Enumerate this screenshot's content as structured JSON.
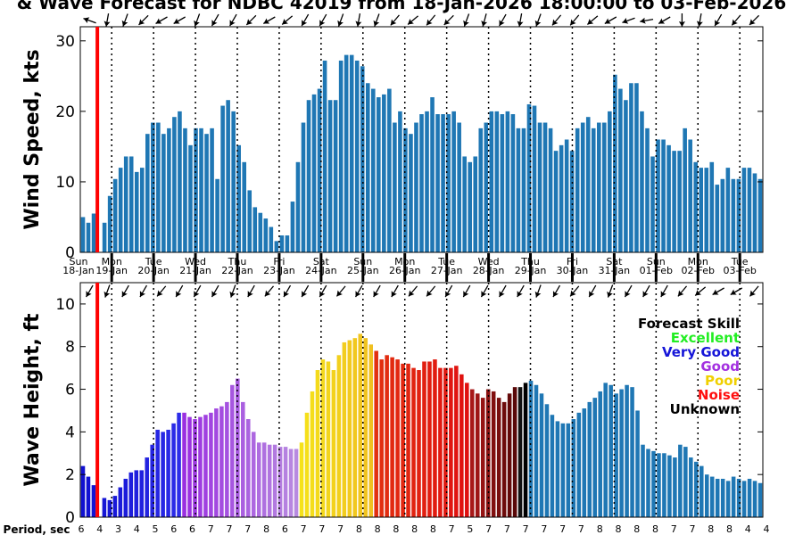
{
  "chart_data": {
    "type": "bar",
    "title": "& Wave Forecast for NDBC 42019 from 18-Jan-2026 18:00:00 to 03-Feb-2026",
    "days": [
      {
        "dow": "Sun",
        "date": "18-Jan"
      },
      {
        "dow": "Mon",
        "date": "19-Jan"
      },
      {
        "dow": "Tue",
        "date": "20-Jan"
      },
      {
        "dow": "Wed",
        "date": "21-Jan"
      },
      {
        "dow": "Thu",
        "date": "22-Jan"
      },
      {
        "dow": "Fri",
        "date": "23-Jan"
      },
      {
        "dow": "Sat",
        "date": "24-Jan"
      },
      {
        "dow": "Sun",
        "date": "25-Jan"
      },
      {
        "dow": "Mon",
        "date": "26-Jan"
      },
      {
        "dow": "Tue",
        "date": "27-Jan"
      },
      {
        "dow": "Wed",
        "date": "28-Jan"
      },
      {
        "dow": "Thu",
        "date": "29-Jan"
      },
      {
        "dow": "Fri",
        "date": "30-Jan"
      },
      {
        "dow": "Sat",
        "date": "31-Jan"
      },
      {
        "dow": "Sun",
        "date": "01-Feb"
      },
      {
        "dow": "Mon",
        "date": "02-Feb"
      },
      {
        "dow": "Tue",
        "date": "03-Feb"
      }
    ],
    "wind": {
      "ylabel": "Wind Speed, kts",
      "ylim": [
        0,
        32
      ],
      "yticks": [
        0,
        10,
        20,
        30
      ],
      "color": "#1f77b4",
      "values": [
        5.0,
        4.2,
        5.5,
        0,
        4.2,
        8.0,
        10.4,
        12.0,
        13.6,
        13.6,
        11.4,
        12.0,
        16.8,
        18.4,
        18.4,
        16.8,
        17.6,
        19.2,
        20.0,
        17.6,
        15.2,
        17.6,
        17.6,
        16.8,
        17.6,
        10.4,
        20.8,
        21.6,
        20.0,
        15.2,
        12.8,
        8.8,
        6.4,
        5.6,
        4.8,
        3.6,
        1.6,
        2.4,
        2.4,
        7.2,
        12.8,
        18.4,
        21.6,
        22.4,
        23.2,
        27.2,
        21.6,
        21.6,
        27.2,
        28.0,
        28.0,
        27.2,
        26.4,
        24.0,
        23.2,
        22.0,
        22.4,
        23.2,
        18.4,
        20.0,
        17.6,
        16.8,
        18.4,
        19.6,
        20.0,
        22.0,
        19.6,
        19.6,
        19.6,
        20.0,
        18.4,
        13.6,
        12.8,
        13.6,
        17.6,
        18.4,
        20.0,
        20.0,
        19.6,
        20.0,
        19.6,
        17.6,
        17.6,
        21.0,
        20.8,
        18.4,
        18.4,
        17.6,
        14.4,
        15.2,
        16.0,
        14.4,
        17.6,
        18.4,
        19.2,
        17.6,
        18.4,
        18.4,
        20.0,
        25.2,
        23.2,
        21.6,
        24.0,
        24.0,
        20.0,
        17.6,
        13.6,
        16.0,
        16.0,
        15.2,
        14.4,
        14.4,
        17.6,
        16.0,
        12.8,
        12.0,
        12.0,
        12.8,
        9.6,
        10.4,
        12.0,
        10.4,
        10.4,
        12.0,
        12.0,
        11.2,
        10.4
      ]
    },
    "wave": {
      "ylabel": "Wave Height, ft",
      "ylim": [
        0,
        11
      ],
      "yticks": [
        0,
        2,
        4,
        6,
        8,
        10
      ],
      "values": [
        2.4,
        1.9,
        1.5,
        0,
        0.9,
        0.8,
        1.0,
        1.4,
        1.8,
        2.1,
        2.2,
        2.2,
        2.8,
        3.4,
        4.1,
        4.0,
        4.1,
        4.4,
        4.9,
        4.9,
        4.7,
        4.6,
        4.7,
        4.8,
        4.9,
        5.1,
        5.2,
        5.4,
        6.2,
        6.5,
        5.4,
        4.6,
        4.0,
        3.5,
        3.5,
        3.4,
        3.4,
        3.3,
        3.3,
        3.2,
        3.2,
        3.5,
        4.9,
        5.9,
        6.9,
        7.4,
        7.3,
        6.9,
        7.6,
        8.2,
        8.3,
        8.4,
        8.6,
        8.4,
        8.1,
        7.8,
        7.4,
        7.6,
        7.5,
        7.4,
        7.2,
        7.2,
        7.0,
        6.9,
        7.3,
        7.3,
        7.4,
        7.0,
        7.0,
        7.0,
        7.1,
        6.7,
        6.3,
        6.0,
        5.8,
        5.6,
        6.0,
        5.9,
        5.6,
        5.4,
        5.8,
        6.1,
        6.1,
        6.3,
        6.4,
        6.2,
        5.8,
        5.3,
        4.8,
        4.5,
        4.4,
        4.4,
        4.6,
        4.9,
        5.1,
        5.4,
        5.6,
        5.9,
        6.3,
        6.2,
        5.8,
        6.0,
        6.2,
        6.1,
        5.0,
        3.4,
        3.2,
        3.1,
        3.0,
        3.0,
        2.9,
        2.8,
        3.4,
        3.3,
        2.8,
        2.6,
        2.4,
        2.0,
        1.9,
        1.8,
        1.8,
        1.7,
        1.9,
        1.8,
        1.7,
        1.8,
        1.7,
        1.6
      ],
      "color_index": [
        0,
        0,
        0,
        0,
        0,
        0,
        0,
        0,
        0,
        0,
        0,
        0,
        0,
        0,
        0,
        0,
        0,
        0,
        0,
        1,
        1,
        1,
        1,
        1,
        1,
        1,
        1,
        1,
        1,
        1,
        1,
        1,
        1,
        1,
        1,
        1,
        1,
        1,
        1,
        1,
        1,
        2,
        2,
        2,
        2,
        2,
        2,
        2,
        2,
        2,
        2,
        2,
        2,
        2,
        2,
        3,
        3,
        3,
        3,
        3,
        3,
        3,
        3,
        3,
        3,
        3,
        3,
        3,
        3,
        3,
        3,
        3,
        3,
        4,
        4,
        4,
        4,
        4,
        4,
        4,
        4,
        4,
        5,
        5,
        6,
        6,
        6,
        6,
        6,
        6,
        6,
        6,
        6,
        6,
        6,
        6,
        6,
        6,
        6,
        6,
        6,
        6,
        6,
        6,
        6,
        6,
        6,
        6,
        6,
        6,
        6,
        6,
        6,
        6,
        6,
        6,
        6,
        6,
        6,
        6,
        6,
        6,
        6,
        6,
        6,
        6,
        6,
        6
      ],
      "color_stops": [
        {
          "from": "#1010d0",
          "to": "#2c2ce8"
        },
        {
          "from": "#9a2fe0",
          "to": "#b88ae0"
        },
        {
          "from": "#f5e21a",
          "to": "#f0c020"
        },
        {
          "from": "#e23010",
          "to": "#e01010"
        },
        {
          "from": "#a81818",
          "to": "#5a0808"
        },
        {
          "from": "#111111",
          "to": "#000000"
        },
        {
          "from": "#1f77b4",
          "to": "#1f77b4"
        }
      ]
    },
    "legend": {
      "title": "Forecast Skill",
      "items": [
        {
          "label": "Excellent",
          "color": "#22ee22"
        },
        {
          "label": "Very Good",
          "color": "#1515d8"
        },
        {
          "label": "Good",
          "color": "#a330e0"
        },
        {
          "label": "Poor",
          "color": "#f0d000"
        },
        {
          "label": "Noise",
          "color": "#ff1010"
        },
        {
          "label": "Unknown",
          "color": "#000000"
        }
      ]
    },
    "period_label": "Period, sec",
    "periods": [
      6,
      4,
      3,
      4,
      5,
      6,
      6,
      7,
      7,
      7,
      8,
      6,
      7,
      7,
      7,
      8,
      8,
      8,
      8,
      8,
      7,
      5,
      7,
      7,
      7,
      7,
      7,
      7,
      8,
      8,
      8,
      8,
      7,
      7,
      8,
      8,
      4,
      4
    ],
    "wind_arrow_angles": [
      200,
      100,
      110,
      135,
      150,
      150,
      110,
      120,
      120,
      135,
      150,
      140,
      120,
      120,
      110,
      100,
      110,
      130,
      140,
      130,
      135,
      110,
      105,
      120,
      100,
      110,
      130,
      130,
      140,
      150,
      160,
      170,
      150,
      90,
      100,
      120,
      130,
      135
    ],
    "wave_arrow_angles": [
      120,
      110,
      120,
      120,
      130,
      120,
      120,
      120,
      110,
      120,
      130,
      120,
      120,
      120,
      130,
      120,
      120,
      120,
      130,
      130,
      120,
      120,
      120,
      120,
      120,
      110,
      120,
      130,
      120,
      110,
      120,
      120,
      120,
      130,
      140,
      150,
      150,
      130
    ],
    "current_time_fraction": 0.025
  }
}
